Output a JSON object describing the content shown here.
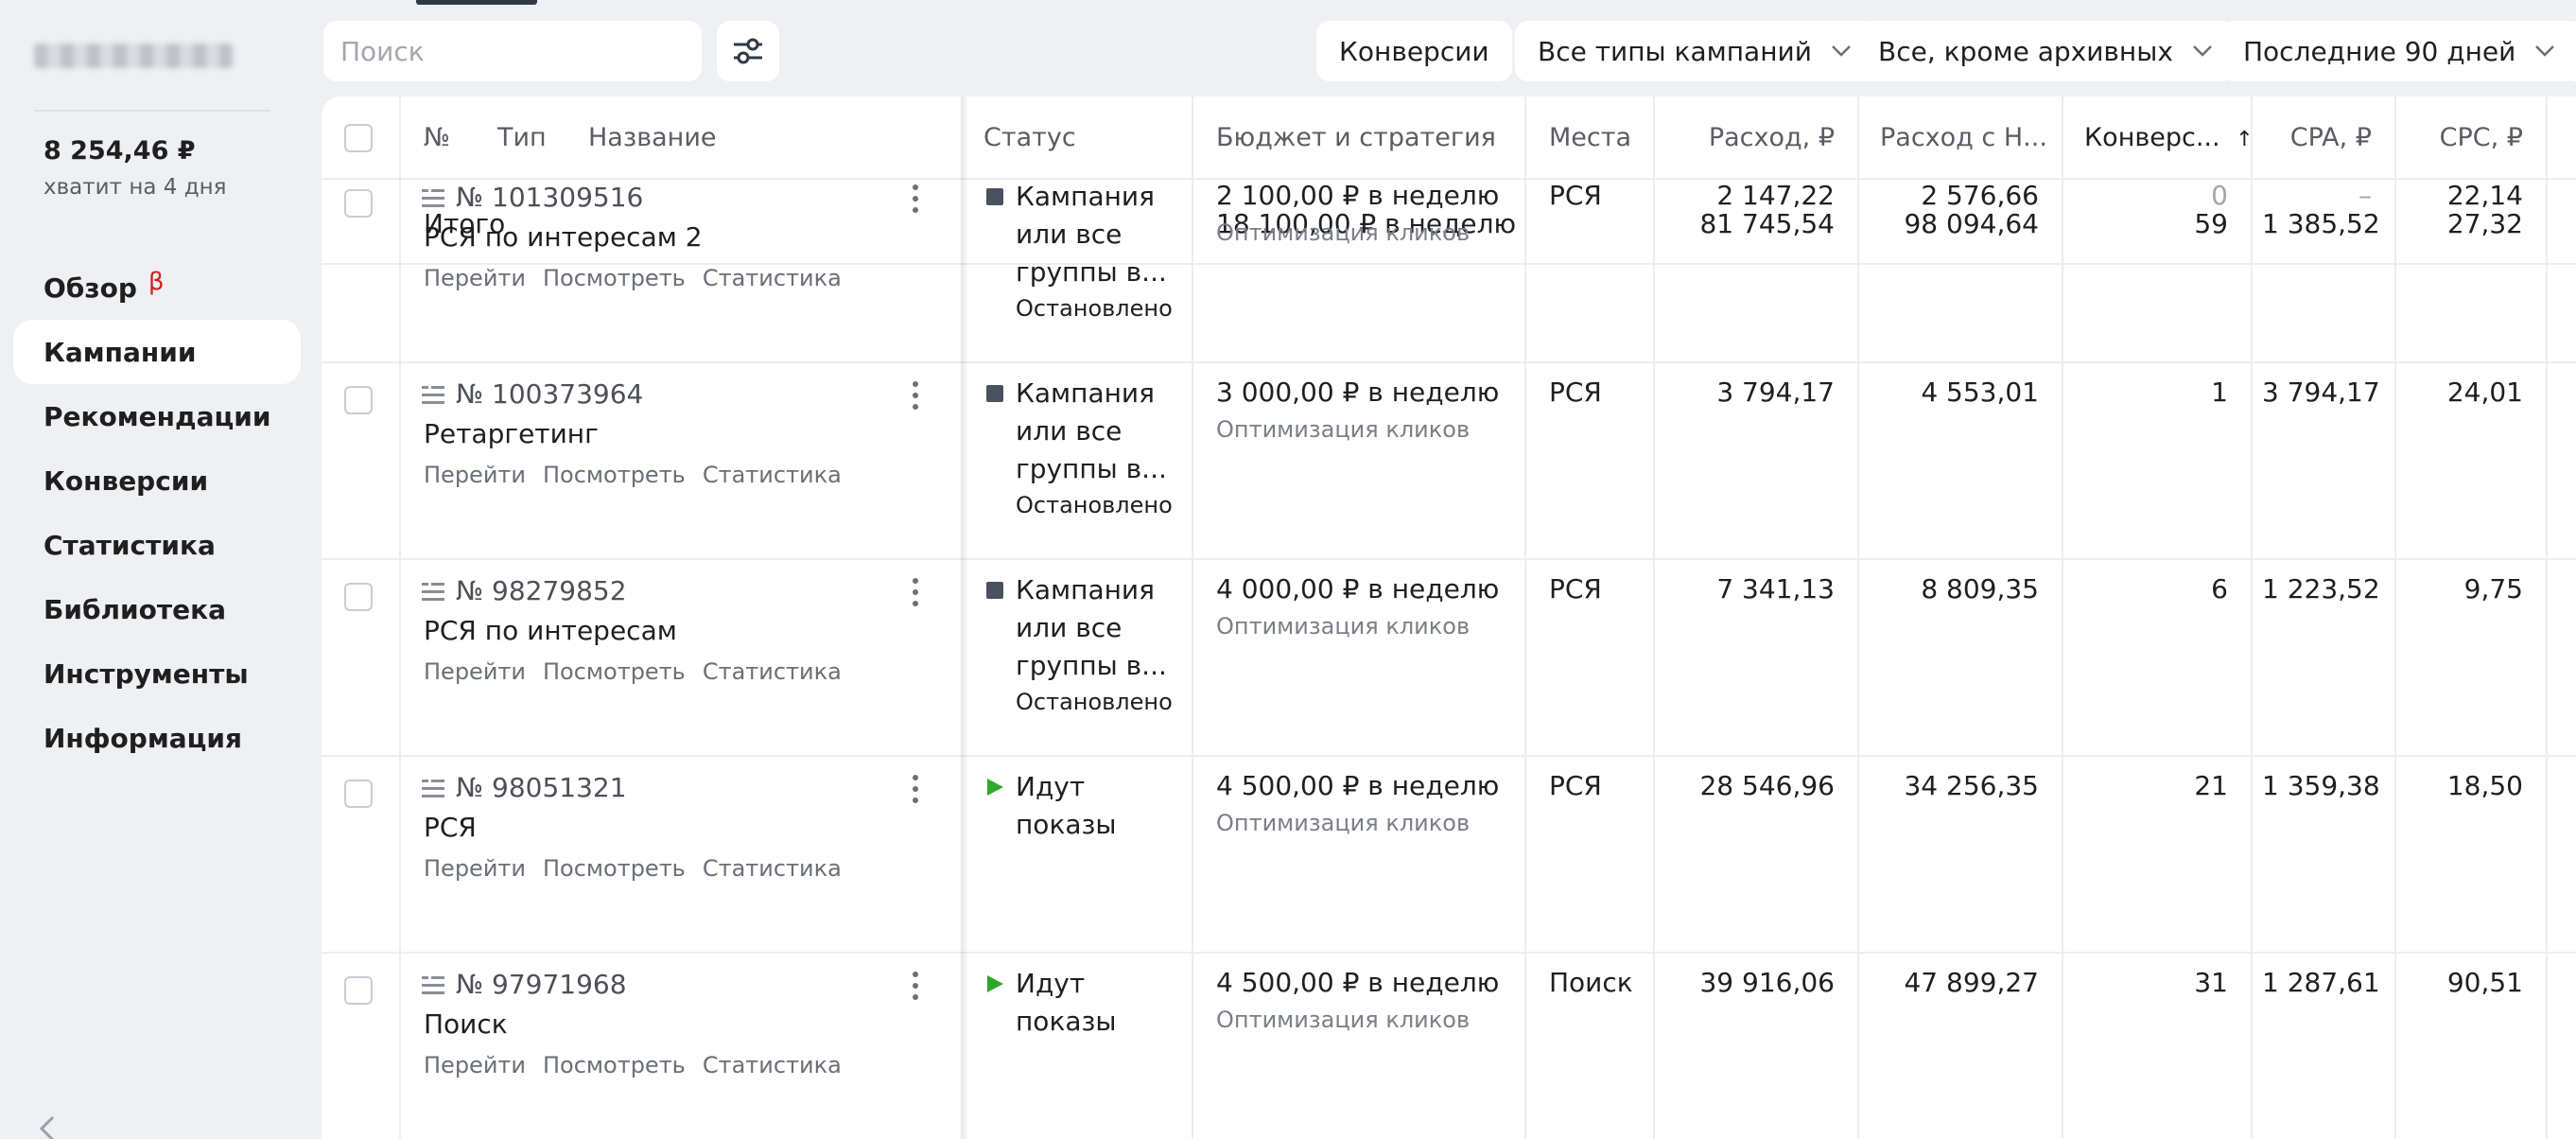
{
  "sidebar": {
    "balance": "8 254,46 ₽",
    "balance_note": "хватит на 4 дня",
    "nav": [
      {
        "label": "Обзор",
        "badge": "β"
      },
      {
        "label": "Кампании"
      },
      {
        "label": "Рекомендации"
      },
      {
        "label": "Конверсии"
      },
      {
        "label": "Статистика"
      },
      {
        "label": "Библиотека"
      },
      {
        "label": "Инструменты"
      },
      {
        "label": "Информация"
      }
    ]
  },
  "toolbar": {
    "search_placeholder": "Поиск",
    "filters": [
      "Конверсии",
      "Все типы кампаний",
      "Все, кроме архивных",
      "Последние 90 дней"
    ]
  },
  "table": {
    "headers": {
      "num": "№",
      "type": "Тип",
      "name": "Название",
      "status": "Статус",
      "budget": "Бюджет и стратегия",
      "places": "Места",
      "spend": "Расход, ₽",
      "spend_vat": "Расход с Н...",
      "conv": "Конверс...",
      "conv_sort": "↑",
      "cpa": "CPA, ₽",
      "cpc": "CPC, ₽"
    },
    "total": {
      "label": "Итого",
      "budget": "18 100,00 ₽ в неделю",
      "spend": "81 745,54",
      "spend_vat": "98 094,64",
      "conv": "59",
      "cpa": "1 385,52",
      "cpc": "27,32"
    },
    "link_labels": {
      "go": "Перейти",
      "view": "Посмотреть",
      "stats": "Статистика"
    },
    "rows": [
      {
        "number": "№ 101309516",
        "name": "РСЯ по интересам 2",
        "status": "Кампания\nили все\nгруппы в...",
        "status_sub": "Остановлено",
        "status_type": "stopped",
        "budget": "2 100,00 ₽ в неделю",
        "strategy": "Оптимизация кликов",
        "place": "РСЯ",
        "spend": "2 147,22",
        "spend_vat": "2 576,66",
        "conv": "0",
        "cpa": "–",
        "cpc": "22,14"
      },
      {
        "number": "№ 100373964",
        "name": "Ретаргетинг",
        "status": "Кампания\nили все\nгруппы в...",
        "status_sub": "Остановлено",
        "status_type": "stopped",
        "budget": "3 000,00 ₽ в неделю",
        "strategy": "Оптимизация кликов",
        "place": "РСЯ",
        "spend": "3 794,17",
        "spend_vat": "4 553,01",
        "conv": "1",
        "cpa": "3 794,17",
        "cpc": "24,01"
      },
      {
        "number": "№ 98279852",
        "name": "РСЯ по интересам",
        "status": "Кампания\nили все\nгруппы в...",
        "status_sub": "Остановлено",
        "status_type": "stopped",
        "budget": "4 000,00 ₽ в неделю",
        "strategy": "Оптимизация кликов",
        "place": "РСЯ",
        "spend": "7 341,13",
        "spend_vat": "8 809,35",
        "conv": "6",
        "cpa": "1 223,52",
        "cpc": "9,75"
      },
      {
        "number": "№ 98051321",
        "name": "РСЯ",
        "status": "Идут\nпоказы",
        "status_sub": "",
        "status_type": "running",
        "budget": "4 500,00 ₽ в неделю",
        "strategy": "Оптимизация кликов",
        "place": "РСЯ",
        "spend": "28 546,96",
        "spend_vat": "34 256,35",
        "conv": "21",
        "cpa": "1 359,38",
        "cpc": "18,50"
      },
      {
        "number": "№ 97971968",
        "name": "Поиск",
        "status": "Идут\nпоказы",
        "status_sub": "",
        "status_type": "running",
        "budget": "4 500,00 ₽ в неделю",
        "strategy": "Оптимизация кликов",
        "place": "Поиск",
        "spend": "39 916,06",
        "spend_vat": "47 899,27",
        "conv": "31",
        "cpa": "1 287,61",
        "cpc": "90,51"
      }
    ]
  },
  "colors": {
    "stopped": "#4a5260",
    "running": "#2fa829",
    "beta": "#d61f1f"
  }
}
